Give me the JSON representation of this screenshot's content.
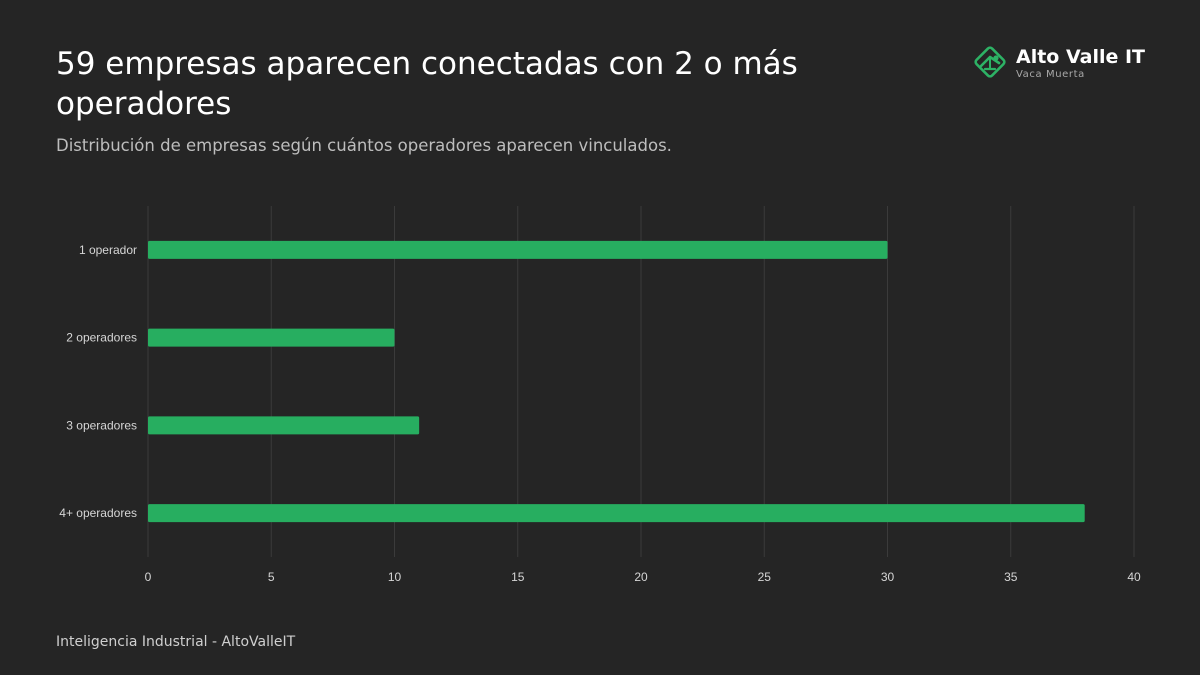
{
  "header": {
    "title": "59 empresas aparecen conectadas con 2 o más operadores",
    "subtitle": "Distribución de empresas según cuántos operadores aparecen vinculados."
  },
  "brand": {
    "name": "Alto Valle IT",
    "tagline": "Vaca Muerta",
    "logo_icon": "pumpjack-diamond-icon",
    "accent_color": "#2db265"
  },
  "footer": {
    "text": "Inteligencia Industrial - AltoValleIT"
  },
  "colors": {
    "background": "#252525",
    "bar": "#27ae60",
    "grid": "#3b3b3b",
    "tick_text": "#d6d6d6"
  },
  "chart_data": {
    "type": "bar",
    "orientation": "horizontal",
    "categories": [
      "1 operador",
      "2 operadores",
      "3 operadores",
      "4+ operadores"
    ],
    "values": [
      30,
      10,
      11,
      38
    ],
    "title": "",
    "xlabel": "",
    "ylabel": "",
    "xlim": [
      0,
      40
    ],
    "x_ticks": [
      0,
      5,
      10,
      15,
      20,
      25,
      30,
      35,
      40
    ],
    "grid": "vertical",
    "legend": "none"
  }
}
